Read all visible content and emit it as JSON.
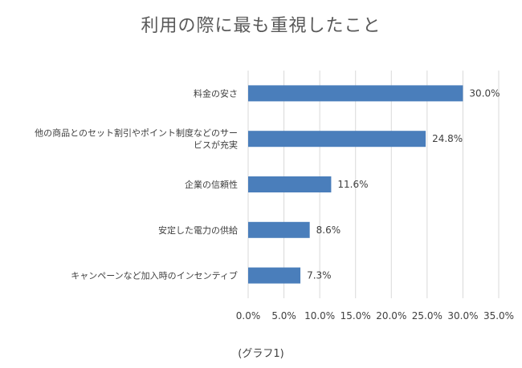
{
  "chart_data": {
    "type": "bar",
    "orientation": "horizontal",
    "title": "利用の際に最も重視したこと",
    "categories": [
      [
        "料金の安さ"
      ],
      [
        "他の商品とのセット割引やポイント制度などのサー",
        "ビスが充実"
      ],
      [
        "企業の信頼性"
      ],
      [
        "安定した電力の供給"
      ],
      [
        "キャンペーンなど加入時のインセンティブ"
      ]
    ],
    "values": [
      30.0,
      24.8,
      11.6,
      8.6,
      7.3
    ],
    "value_labels": [
      "30.0%",
      "24.8%",
      "11.6%",
      "8.6%",
      "7.3%"
    ],
    "xlim": [
      0,
      35
    ],
    "x_ticks": [
      "0.0%",
      "5.0%",
      "10.0%",
      "15.0%",
      "20.0%",
      "25.0%",
      "30.0%",
      "35.0%"
    ],
    "grid": "vertical",
    "bar_color": "#4a7ebb",
    "grid_color": "#d9d9d9"
  },
  "caption": "(グラフ1)"
}
